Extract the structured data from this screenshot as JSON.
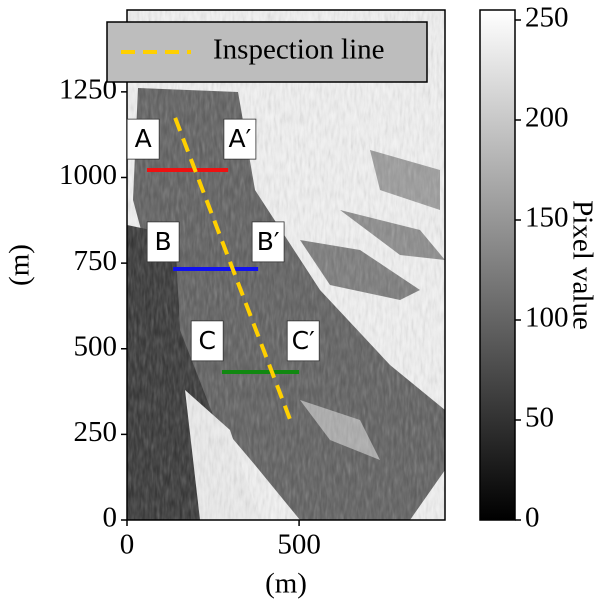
{
  "chart_data": {
    "type": "image",
    "xlabel": "(m)",
    "ylabel": "(m)",
    "xlim": [
      0,
      924
    ],
    "ylim": [
      0,
      1489
    ],
    "xticks": [
      0,
      500
    ],
    "yticks": [
      0,
      250,
      500,
      750,
      1000,
      1250
    ],
    "lines": [
      {
        "name": "Inspection line",
        "color": "#ffd000",
        "dashed": true,
        "x": [
          140,
          480
        ],
        "y": [
          1174,
          277
        ]
      }
    ],
    "segments": [
      {
        "color": "#ee1111",
        "x": [
          58,
          294
        ],
        "y": [
          1022,
          1022
        ]
      },
      {
        "color": "#1111ee",
        "x": [
          134,
          381
        ],
        "y": [
          733,
          733
        ]
      },
      {
        "color": "#118811",
        "x": [
          276,
          500
        ],
        "y": [
          432,
          432
        ]
      }
    ],
    "annotations": [
      {
        "text": "A",
        "x": 47,
        "y": 1112
      },
      {
        "text": "A′",
        "x": 328,
        "y": 1112
      },
      {
        "text": "B",
        "x": 105,
        "y": 812
      },
      {
        "text": "B′",
        "x": 410,
        "y": 812
      },
      {
        "text": "C",
        "x": 233,
        "y": 523
      },
      {
        "text": "C′",
        "x": 512,
        "y": 523
      }
    ],
    "legend": "upper center",
    "colorbar": {
      "label": "Pixel value",
      "lim": [
        0,
        255
      ],
      "ticks": [
        0,
        50,
        100,
        150,
        200,
        250
      ]
    }
  }
}
